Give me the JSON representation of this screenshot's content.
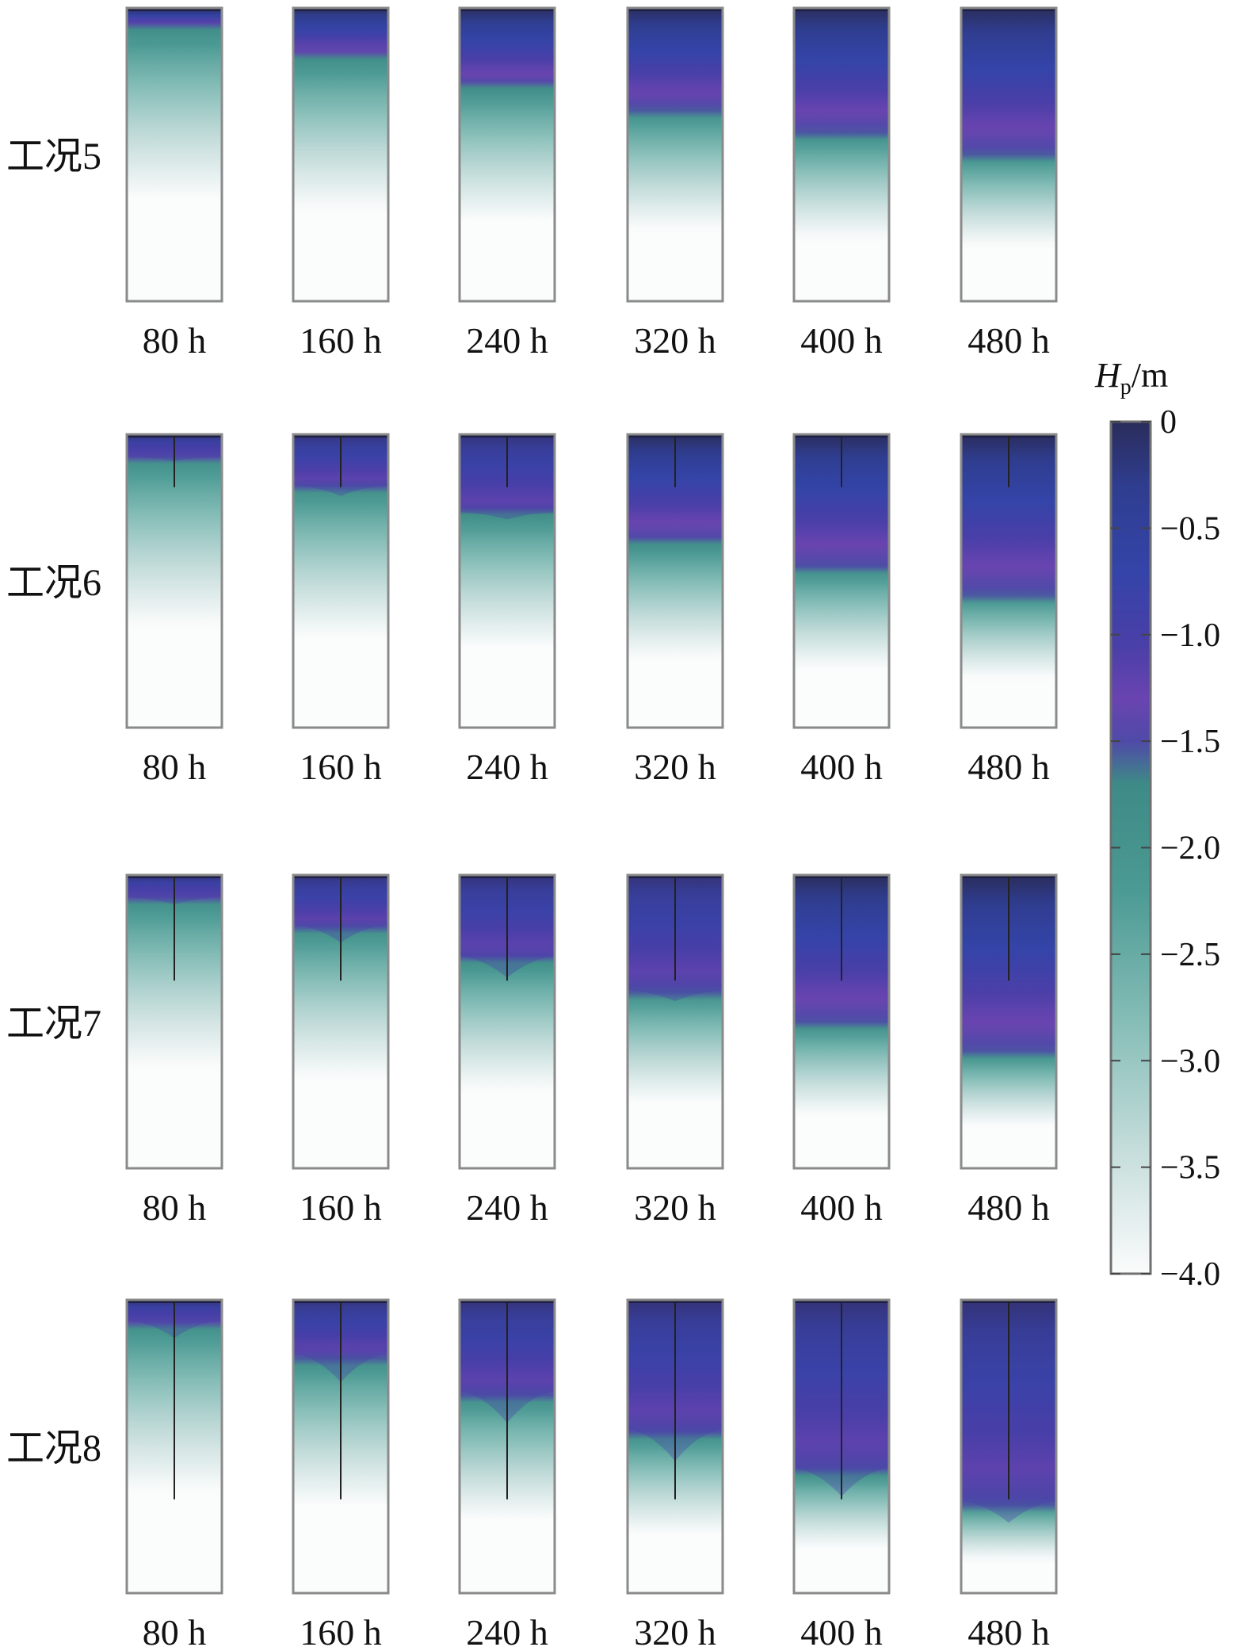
{
  "chart_data": {
    "type": "heatmap",
    "title": "",
    "colorbar": {
      "label_var": "H",
      "label_sub": "p",
      "label_unit": "/m",
      "min": -4.0,
      "max": 0,
      "ticks": [
        0,
        -0.5,
        -1.0,
        -1.5,
        -2.0,
        -2.5,
        -3.0,
        -3.5,
        -4.0
      ],
      "tick_labels": [
        "0",
        "−0.5",
        "−1.0",
        "−1.5",
        "−2.0",
        "−2.5",
        "−3.0",
        "−3.5",
        "−4.0"
      ],
      "colors": [
        {
          "value": 0,
          "color": "#2a2c5a"
        },
        {
          "value": -0.3,
          "color": "#2f3d8f"
        },
        {
          "value": -0.7,
          "color": "#3444a8"
        },
        {
          "value": -1.05,
          "color": "#4a3fa8"
        },
        {
          "value": -1.3,
          "color": "#6a44b0"
        },
        {
          "value": -1.5,
          "color": "#4f4aa8"
        },
        {
          "value": -1.7,
          "color": "#3e8a86"
        },
        {
          "value": -2.2,
          "color": "#4c9a94"
        },
        {
          "value": -2.8,
          "color": "#84bcb6"
        },
        {
          "value": -3.4,
          "color": "#c3dcda"
        },
        {
          "value": -4.0,
          "color": "#fbfcfc"
        }
      ]
    },
    "times": [
      "80 h",
      "160 h",
      "240 h",
      "320 h",
      "400 h",
      "480 h"
    ],
    "rows": [
      {
        "label": "工况5",
        "crack_depth": 0,
        "front_depth": [
          0.07,
          0.17,
          0.27,
          0.35,
          0.43,
          0.5
        ],
        "curvature": [
          0,
          0,
          0,
          0,
          0,
          0
        ]
      },
      {
        "label": "工况6",
        "crack_depth": 0.18,
        "front_depth": [
          0.08,
          0.18,
          0.27,
          0.37,
          0.46,
          0.55
        ],
        "curvature": [
          0.01,
          0.03,
          0.02,
          0,
          0,
          0
        ]
      },
      {
        "label": "工况7",
        "crack_depth": 0.36,
        "front_depth": [
          0.08,
          0.18,
          0.29,
          0.4,
          0.51,
          0.61
        ],
        "curvature": [
          0.02,
          0.05,
          0.06,
          0.03,
          0,
          0
        ]
      },
      {
        "label": "工况8",
        "crack_depth": 0.68,
        "front_depth": [
          0.08,
          0.2,
          0.33,
          0.46,
          0.59,
          0.7
        ],
        "curvature": [
          0.05,
          0.08,
          0.09,
          0.09,
          0.08,
          0.06
        ]
      }
    ]
  }
}
